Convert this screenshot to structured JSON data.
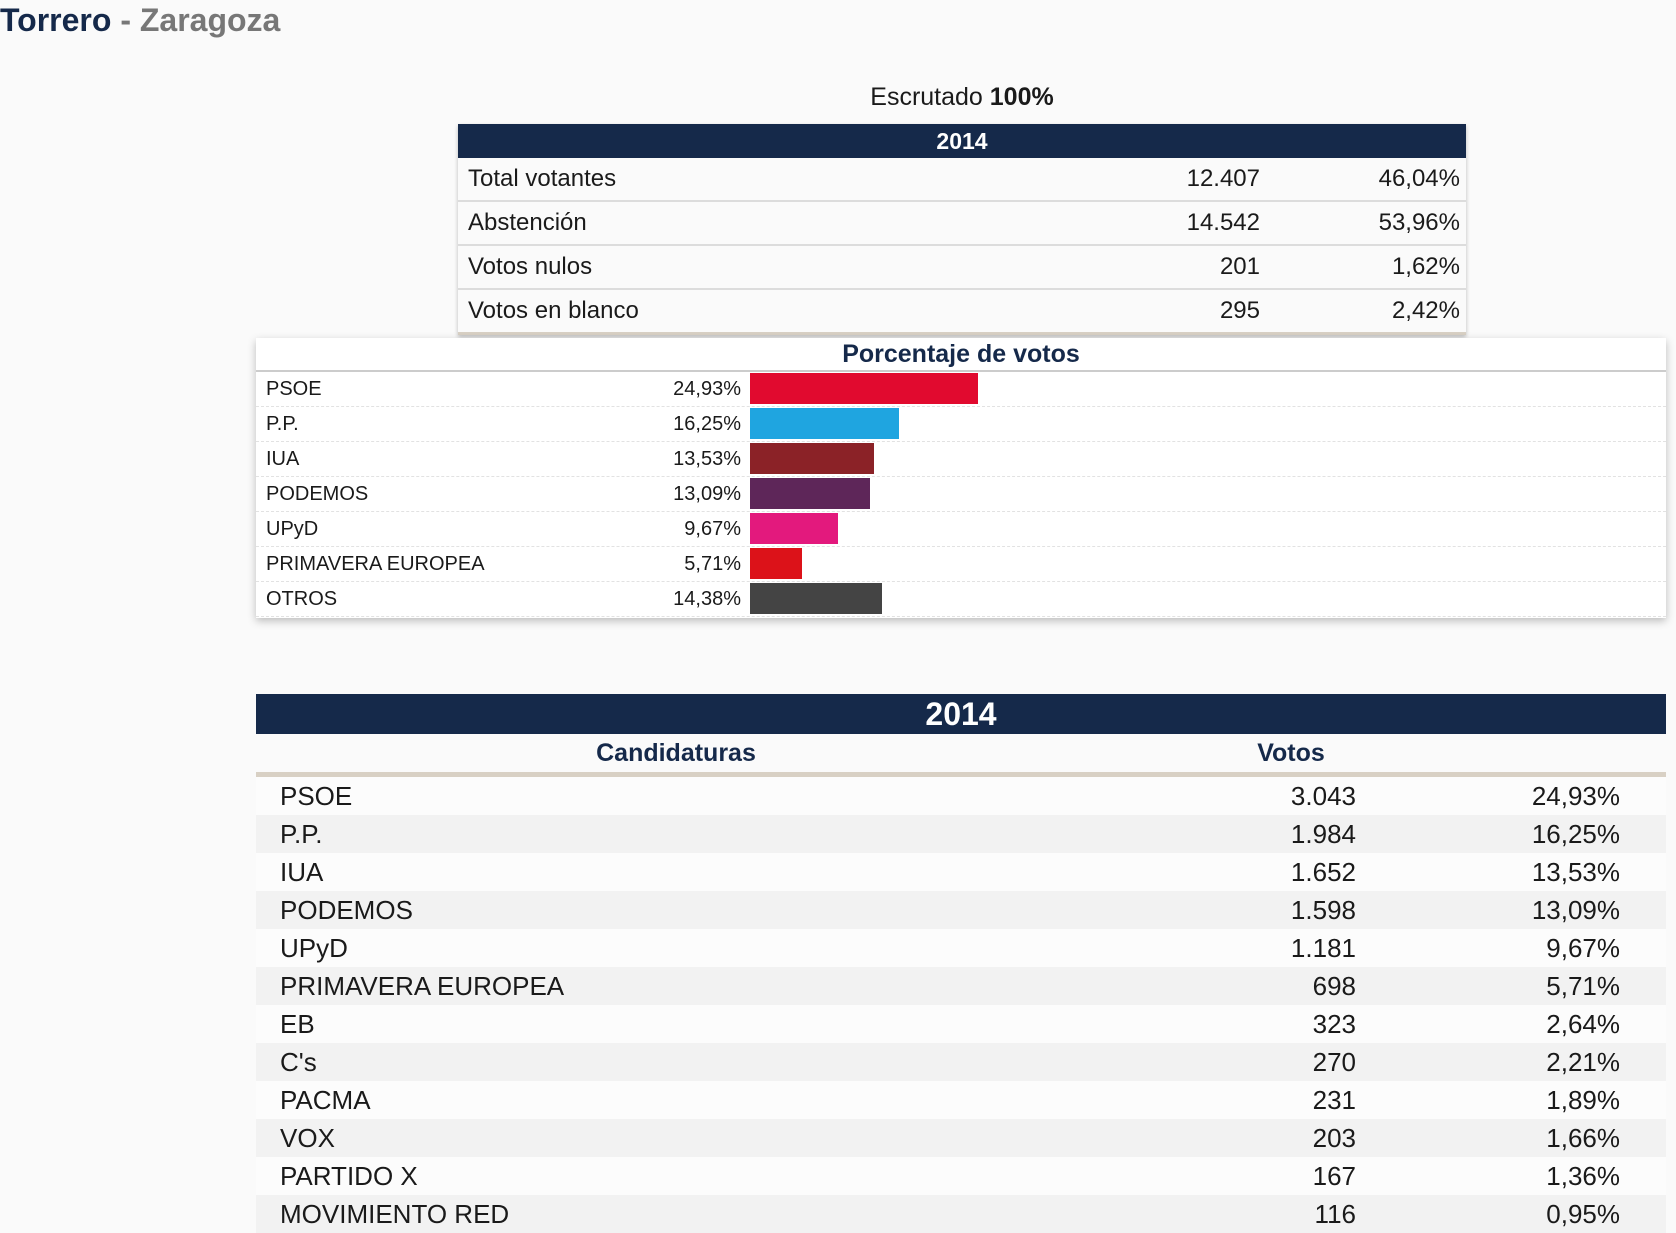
{
  "header": {
    "municipality": "Torrero",
    "separator": "-",
    "province": "Zaragoza"
  },
  "scrutiny": {
    "label": "Escrutado",
    "value": "100%"
  },
  "summary": {
    "year": "2014",
    "rows": [
      {
        "label": "Total votantes",
        "votes": "12.407",
        "pct": "46,04%"
      },
      {
        "label": "Abstención",
        "votes": "14.542",
        "pct": "53,96%"
      },
      {
        "label": "Votos nulos",
        "votes": "201",
        "pct": "1,62%"
      },
      {
        "label": "Votos en blanco",
        "votes": "295",
        "pct": "2,42%"
      }
    ]
  },
  "chart_data": {
    "type": "bar",
    "orientation": "horizontal",
    "title": "Porcentaje de votos",
    "categories": [
      "PSOE",
      "P.P.",
      "IUA",
      "PODEMOS",
      "UPyD",
      "PRIMAVERA EUROPEA",
      "OTROS"
    ],
    "values": [
      24.93,
      16.25,
      13.53,
      13.09,
      9.67,
      5.71,
      14.38
    ],
    "value_labels": [
      "24,93%",
      "16,25%",
      "13,53%",
      "13,09%",
      "9,67%",
      "5,71%",
      "14,38%"
    ],
    "colors": [
      "#e10a2f",
      "#1fa5e0",
      "#8b2227",
      "#5e2659",
      "#e3197d",
      "#dc1219",
      "#444444"
    ],
    "unit": "%",
    "grid": false,
    "legend": "none"
  },
  "results": {
    "year": "2014",
    "col_candidaturas": "Candidaturas",
    "col_votos": "Votos",
    "rows": [
      {
        "name": "PSOE",
        "votes": "3.043",
        "pct": "24,93%"
      },
      {
        "name": "P.P.",
        "votes": "1.984",
        "pct": "16,25%"
      },
      {
        "name": "IUA",
        "votes": "1.652",
        "pct": "13,53%"
      },
      {
        "name": "PODEMOS",
        "votes": "1.598",
        "pct": "13,09%"
      },
      {
        "name": "UPyD",
        "votes": "1.181",
        "pct": "9,67%"
      },
      {
        "name": "PRIMAVERA EUROPEA",
        "votes": "698",
        "pct": "5,71%"
      },
      {
        "name": "EB",
        "votes": "323",
        "pct": "2,64%"
      },
      {
        "name": "C's",
        "votes": "270",
        "pct": "2,21%"
      },
      {
        "name": "PACMA",
        "votes": "231",
        "pct": "1,89%"
      },
      {
        "name": "VOX",
        "votes": "203",
        "pct": "1,66%"
      },
      {
        "name": "PARTIDO X",
        "votes": "167",
        "pct": "1,36%"
      },
      {
        "name": "MOVIMIENTO RED",
        "votes": "116",
        "pct": "0,95%"
      }
    ]
  }
}
